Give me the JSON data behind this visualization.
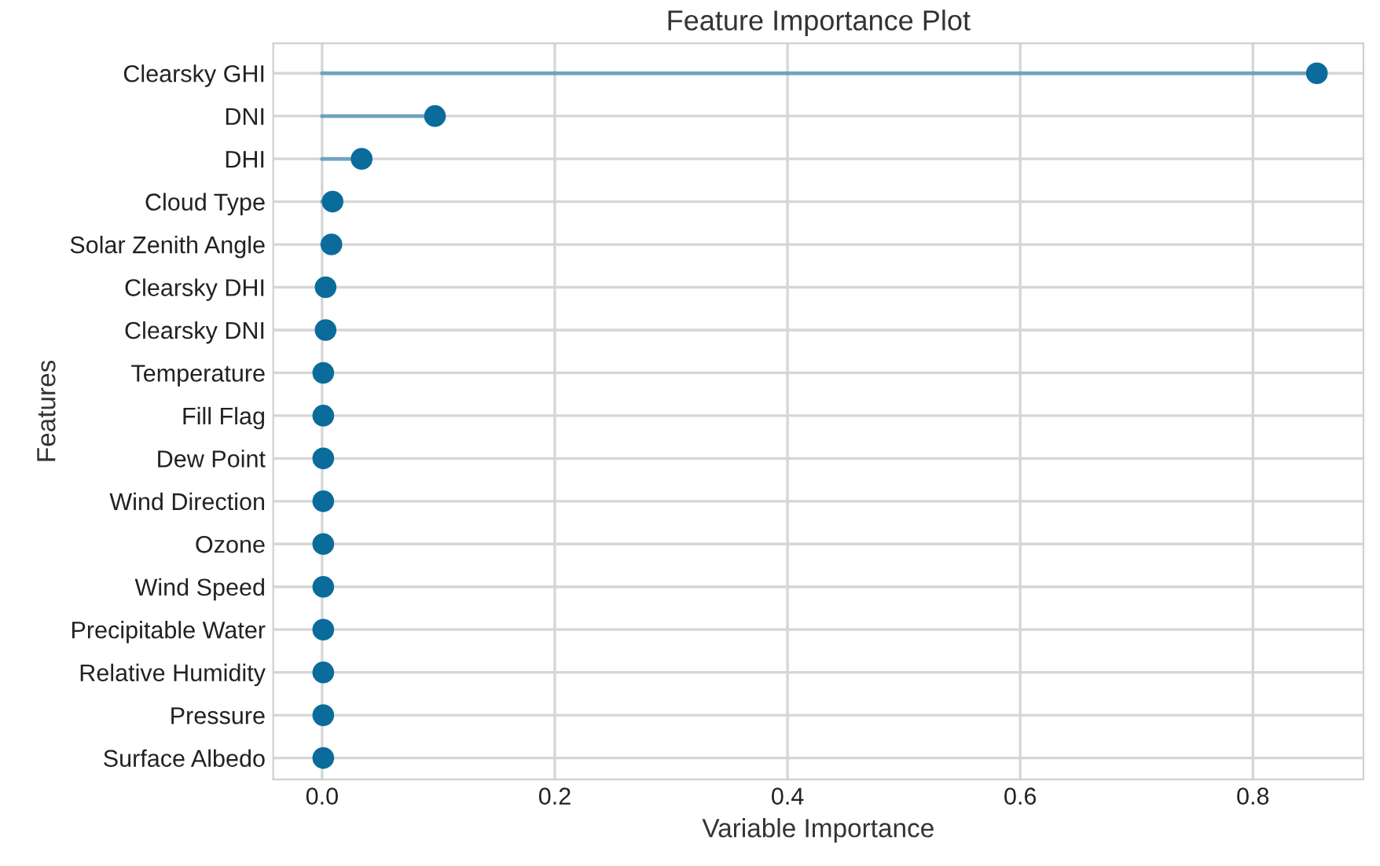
{
  "chart_data": {
    "type": "lollipop",
    "orientation": "horizontal",
    "title": "Feature Importance Plot",
    "xlabel": "Variable Importance",
    "ylabel": "Features",
    "categories": [
      "Clearsky GHI",
      "DNI",
      "DHI",
      "Cloud Type",
      "Solar Zenith Angle",
      "Clearsky DHI",
      "Clearsky DNI",
      "Temperature",
      "Fill Flag",
      "Dew Point",
      "Wind Direction",
      "Ozone",
      "Wind Speed",
      "Precipitable Water",
      "Relative Humidity",
      "Pressure",
      "Surface Albedo"
    ],
    "series": [
      {
        "color": "#0b6c9c",
        "values": [
          0.855,
          0.097,
          0.034,
          0.009,
          0.008,
          0.003,
          0.003,
          0.001,
          0.001,
          0.001,
          0.001,
          0.001,
          0.001,
          0.001,
          0.001,
          0.001,
          0.001
        ]
      }
    ],
    "xlim": [
      -0.042,
      0.895
    ],
    "xticks": [
      {
        "value": 0,
        "label": "0.0"
      },
      {
        "value": 0.2,
        "label": "0.2"
      },
      {
        "value": 0.4,
        "label": "0.4"
      },
      {
        "value": 0.6,
        "label": "0.6"
      },
      {
        "value": 0.8,
        "label": "0.8"
      }
    ],
    "grid": true,
    "marker": "circle"
  }
}
